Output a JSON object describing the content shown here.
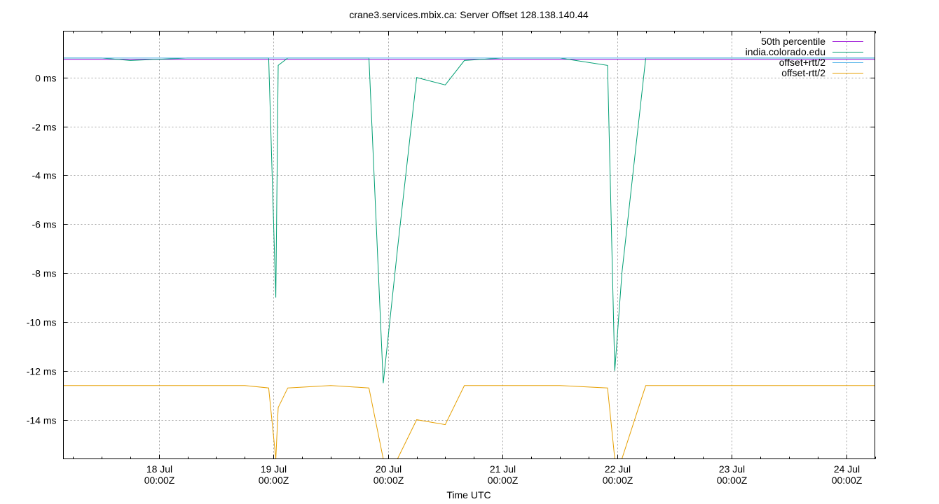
{
  "chart_data": {
    "type": "line",
    "title": "crane3.services.mbix.ca: Server Offset 128.138.140.44",
    "xlabel": "Time UTC",
    "ylabel": "",
    "y_unit": "ms",
    "ylim": [
      -15.6,
      1.9
    ],
    "xlim": [
      "2024-07-17T04:00Z",
      "2024-07-24T06:00Z"
    ],
    "y_ticks": [
      {
        "value": 0,
        "label": "0 ms"
      },
      {
        "value": -2,
        "label": "-2 ms"
      },
      {
        "value": -4,
        "label": "-4 ms"
      },
      {
        "value": -6,
        "label": "-6 ms"
      },
      {
        "value": -8,
        "label": "-8 ms"
      },
      {
        "value": -10,
        "label": "-10 ms"
      },
      {
        "value": -12,
        "label": "-12 ms"
      },
      {
        "value": -14,
        "label": "-14 ms"
      }
    ],
    "x_ticks": [
      {
        "value": "2024-07-18T00:00Z",
        "day": "18 Jul",
        "time": "00:00Z"
      },
      {
        "value": "2024-07-19T00:00Z",
        "day": "19 Jul",
        "time": "00:00Z"
      },
      {
        "value": "2024-07-20T00:00Z",
        "day": "20 Jul",
        "time": "00:00Z"
      },
      {
        "value": "2024-07-21T00:00Z",
        "day": "21 Jul",
        "time": "00:00Z"
      },
      {
        "value": "2024-07-22T00:00Z",
        "day": "22 Jul",
        "time": "00:00Z"
      },
      {
        "value": "2024-07-23T00:00Z",
        "day": "23 Jul",
        "time": "00:00Z"
      },
      {
        "value": "2024-07-24T00:00Z",
        "day": "24 Jul",
        "time": "00:00Z"
      }
    ],
    "grid": true,
    "legend_position": "top-right",
    "series": [
      {
        "name": "50th percentile",
        "color": "#9400d3",
        "constant": 0.75
      },
      {
        "name": "india.colorado.edu",
        "color": "#009e73",
        "x": [
          "2024-07-17T04:00Z",
          "2024-07-17T12:00Z",
          "2024-07-17T18:00Z",
          "2024-07-18T06:00Z",
          "2024-07-18T18:00Z",
          "2024-07-18T23:00Z",
          "2024-07-19T00:30Z",
          "2024-07-19T01:00Z",
          "2024-07-19T03:00Z",
          "2024-07-19T12:00Z",
          "2024-07-19T20:00Z",
          "2024-07-19T23:00Z",
          "2024-07-20T02:00Z",
          "2024-07-20T06:00Z",
          "2024-07-20T12:00Z",
          "2024-07-20T16:00Z",
          "2024-07-21T00:00Z",
          "2024-07-21T12:00Z",
          "2024-07-21T22:00Z",
          "2024-07-21T23:30Z",
          "2024-07-22T01:00Z",
          "2024-07-22T06:00Z",
          "2024-07-22T18:00Z",
          "2024-07-23T06:00Z",
          "2024-07-23T18:00Z",
          "2024-07-24T06:00Z"
        ],
        "y": [
          0.8,
          0.8,
          0.7,
          0.8,
          0.8,
          0.8,
          -9.0,
          0.5,
          0.8,
          0.8,
          0.8,
          -12.5,
          -7.0,
          0.0,
          -0.3,
          0.7,
          0.8,
          0.8,
          0.5,
          -12.0,
          -8.0,
          0.8,
          0.8,
          0.8,
          0.8,
          0.8
        ]
      },
      {
        "name": "offset+rtt/2",
        "color": "#56b4e9",
        "constant": 0.8
      },
      {
        "name": "offset-rtt/2",
        "color": "#e69f00",
        "x": [
          "2024-07-17T04:00Z",
          "2024-07-17T12:00Z",
          "2024-07-17T18:00Z",
          "2024-07-18T06:00Z",
          "2024-07-18T18:00Z",
          "2024-07-18T23:00Z",
          "2024-07-19T00:30Z",
          "2024-07-19T01:00Z",
          "2024-07-19T03:00Z",
          "2024-07-19T12:00Z",
          "2024-07-19T20:00Z",
          "2024-07-19T23:00Z",
          "2024-07-20T02:00Z",
          "2024-07-20T06:00Z",
          "2024-07-20T12:00Z",
          "2024-07-20T16:00Z",
          "2024-07-21T00:00Z",
          "2024-07-21T12:00Z",
          "2024-07-21T22:00Z",
          "2024-07-21T23:30Z",
          "2024-07-22T01:00Z",
          "2024-07-22T06:00Z",
          "2024-07-22T18:00Z",
          "2024-07-23T06:00Z",
          "2024-07-23T18:00Z",
          "2024-07-24T06:00Z"
        ],
        "y": [
          -12.6,
          -12.6,
          -12.6,
          -12.6,
          -12.6,
          -12.7,
          -15.6,
          -13.5,
          -12.7,
          -12.6,
          -12.7,
          -15.6,
          -15.6,
          -14.0,
          -14.2,
          -12.6,
          -12.6,
          -12.6,
          -12.7,
          -15.6,
          -15.6,
          -12.6,
          -12.6,
          -12.6,
          -12.6,
          -12.6
        ]
      }
    ]
  }
}
